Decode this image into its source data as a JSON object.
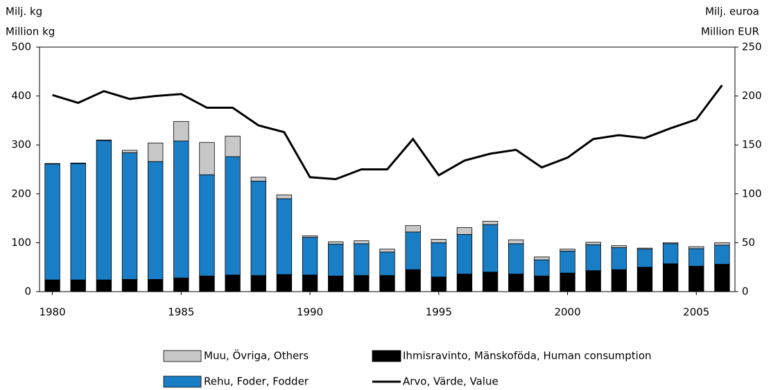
{
  "chart_data": {
    "type": "bar",
    "ylabel": [
      "Milj. kg",
      "Million kg"
    ],
    "y2label": [
      "Milj. euroa",
      "Million EUR"
    ],
    "categories": [
      1980,
      null,
      null,
      null,
      null,
      1985,
      null,
      null,
      null,
      null,
      1990,
      null,
      null,
      null,
      null,
      1995,
      null,
      null,
      null,
      null,
      2000,
      null,
      null,
      null,
      null,
      2005,
      null
    ],
    "series": [
      {
        "name": "Ihmisravinto, Mänskoföda, Human consumption",
        "color": "#000000",
        "values": [
          24,
          24,
          24,
          25,
          25,
          28,
          32,
          34,
          33,
          35,
          34,
          32,
          33,
          33,
          45,
          30,
          36,
          40,
          36,
          32,
          38,
          43,
          45,
          50,
          57,
          52,
          56
        ]
      },
      {
        "name": "Rehu, Foder, Fodder",
        "color": "#1a7ec6",
        "values": [
          237,
          238,
          285,
          259,
          241,
          280,
          207,
          242,
          193,
          155,
          77,
          65,
          65,
          48,
          77,
          70,
          81,
          97,
          62,
          33,
          45,
          53,
          45,
          37,
          41,
          36,
          39
        ]
      },
      {
        "name": "Muu, Övriga, Others",
        "color": "#c8c8c8",
        "values": [
          1,
          1,
          1,
          5,
          38,
          40,
          66,
          42,
          8,
          8,
          3,
          5,
          6,
          6,
          13,
          7,
          14,
          7,
          8,
          6,
          4,
          5,
          4,
          2,
          2,
          4,
          5
        ]
      },
      {
        "name": "Arvo, Värde, Value",
        "color": "#000000",
        "type": "line",
        "axis": "y2",
        "values": [
          201,
          193,
          205,
          197,
          200,
          202,
          188,
          188,
          170,
          163,
          117,
          115,
          125,
          125,
          156,
          119,
          134,
          141,
          145,
          127,
          137,
          156,
          160,
          157,
          167,
          176,
          211
        ]
      }
    ],
    "ylim": [
      0,
      500
    ],
    "yticks": [
      0,
      100,
      200,
      300,
      400,
      500
    ],
    "y2lim": [
      0,
      250
    ],
    "y2ticks": [
      0,
      50,
      100,
      150,
      200,
      250
    ],
    "grid": false
  }
}
